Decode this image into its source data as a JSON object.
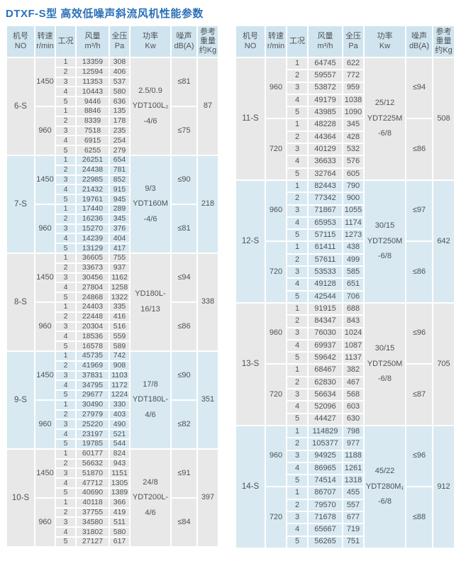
{
  "title": "DTXF-S型 高效低噪声斜流风机性能参数",
  "colors": {
    "title_blue": "#2a70b8",
    "header_bg": "#cfe4ee",
    "row_gray": "#e8e8e8",
    "row_blue": "#d8e9f1",
    "text": "#4f5254"
  },
  "header": {
    "columns": [
      {
        "id": "no",
        "lines": [
          "机号",
          "NO"
        ]
      },
      {
        "id": "speed",
        "lines": [
          "转速",
          "r/min"
        ]
      },
      {
        "id": "condition",
        "lines": [
          "工况"
        ]
      },
      {
        "id": "flow",
        "lines": [
          "风量",
          "m³/h"
        ]
      },
      {
        "id": "pressure",
        "lines": [
          "全压",
          "Pa"
        ]
      },
      {
        "id": "power",
        "lines": [
          "功率",
          "Kw"
        ]
      },
      {
        "id": "noise",
        "lines": [
          "噪声",
          "dB(A)"
        ]
      },
      {
        "id": "weight",
        "lines": [
          "参考",
          "重量",
          "约Kg"
        ]
      }
    ]
  },
  "tables": [
    {
      "id": "left",
      "blocks": [
        {
          "model": "6-S",
          "weight": "87",
          "power_lines": [
            "2.5/0.9",
            "YDT100L₂",
            "-4/6"
          ],
          "groups": [
            {
              "speed": "1450",
              "noise": "≤81",
              "rows": [
                [
                  "1",
                  "13359",
                  "308"
                ],
                [
                  "2",
                  "12594",
                  "406"
                ],
                [
                  "3",
                  "11353",
                  "537"
                ],
                [
                  "4",
                  "10443",
                  "580"
                ],
                [
                  "5",
                  "9446",
                  "636"
                ]
              ]
            },
            {
              "speed": "960",
              "noise": "≤75",
              "rows": [
                [
                  "1",
                  "8846",
                  "135"
                ],
                [
                  "2",
                  "8339",
                  "178"
                ],
                [
                  "3",
                  "7518",
                  "235"
                ],
                [
                  "4",
                  "6915",
                  "254"
                ],
                [
                  "5",
                  "6255",
                  "279"
                ]
              ]
            }
          ]
        },
        {
          "model": "7-S",
          "weight": "218",
          "power_lines": [
            "9/3",
            "YDT160M",
            "-4/6"
          ],
          "groups": [
            {
              "speed": "1450",
              "noise": "≤90",
              "rows": [
                [
                  "1",
                  "26251",
                  "654"
                ],
                [
                  "2",
                  "24438",
                  "781"
                ],
                [
                  "3",
                  "22985",
                  "852"
                ],
                [
                  "4",
                  "21432",
                  "915"
                ],
                [
                  "5",
                  "19761",
                  "945"
                ]
              ]
            },
            {
              "speed": "960",
              "noise": "≤81",
              "rows": [
                [
                  "1",
                  "17440",
                  "289"
                ],
                [
                  "2",
                  "16236",
                  "345"
                ],
                [
                  "3",
                  "15270",
                  "376"
                ],
                [
                  "4",
                  "14239",
                  "404"
                ],
                [
                  "5",
                  "13129",
                  "417"
                ]
              ]
            }
          ]
        },
        {
          "model": "8-S",
          "weight": "338",
          "power_lines": [
            "YD180L-",
            "16/13"
          ],
          "groups": [
            {
              "speed": "1450",
              "noise": "≤94",
              "rows": [
                [
                  "1",
                  "36605",
                  "755"
                ],
                [
                  "2",
                  "33673",
                  "937"
                ],
                [
                  "3",
                  "30456",
                  "1162"
                ],
                [
                  "4",
                  "27804",
                  "1258"
                ],
                [
                  "5",
                  "24868",
                  "1322"
                ]
              ]
            },
            {
              "speed": "960",
              "noise": "≤86",
              "rows": [
                [
                  "1",
                  "24403",
                  "335"
                ],
                [
                  "2",
                  "22448",
                  "416"
                ],
                [
                  "3",
                  "20304",
                  "516"
                ],
                [
                  "4",
                  "18536",
                  "559"
                ],
                [
                  "5",
                  "16578",
                  "589"
                ]
              ]
            }
          ]
        },
        {
          "model": "9-S",
          "weight": "351",
          "power_lines": [
            "17/8",
            "YDT180L-",
            "4/6"
          ],
          "groups": [
            {
              "speed": "1450",
              "noise": "≤90",
              "rows": [
                [
                  "1",
                  "45735",
                  "742"
                ],
                [
                  "2",
                  "41969",
                  "908"
                ],
                [
                  "3",
                  "37831",
                  "1103"
                ],
                [
                  "4",
                  "34795",
                  "1172"
                ],
                [
                  "5",
                  "29677",
                  "1224"
                ]
              ]
            },
            {
              "speed": "960",
              "noise": "≤82",
              "rows": [
                [
                  "1",
                  "30490",
                  "330"
                ],
                [
                  "2",
                  "27979",
                  "403"
                ],
                [
                  "3",
                  "25220",
                  "490"
                ],
                [
                  "4",
                  "23197",
                  "521"
                ],
                [
                  "5",
                  "19785",
                  "544"
                ]
              ]
            }
          ]
        },
        {
          "model": "10-S",
          "weight": "397",
          "power_lines": [
            "24/8",
            "YDT200L-",
            "4/6"
          ],
          "groups": [
            {
              "speed": "1450",
              "noise": "≤91",
              "rows": [
                [
                  "1",
                  "60177",
                  "824"
                ],
                [
                  "2",
                  "56632",
                  "943"
                ],
                [
                  "3",
                  "51870",
                  "1151"
                ],
                [
                  "4",
                  "47712",
                  "1305"
                ],
                [
                  "5",
                  "40690",
                  "1389"
                ]
              ]
            },
            {
              "speed": "960",
              "noise": "≤84",
              "rows": [
                [
                  "1",
                  "40118",
                  "366"
                ],
                [
                  "2",
                  "37755",
                  "419"
                ],
                [
                  "3",
                  "34580",
                  "511"
                ],
                [
                  "4",
                  "31802",
                  "580"
                ],
                [
                  "5",
                  "27127",
                  "617"
                ]
              ]
            }
          ]
        }
      ]
    },
    {
      "id": "right",
      "blocks": [
        {
          "model": "11-S",
          "weight": "508",
          "power_lines": [
            "25/12",
            "YDT225M",
            "-6/8"
          ],
          "groups": [
            {
              "speed": "960",
              "noise": "≤94",
              "rows": [
                [
                  "1",
                  "64745",
                  "622"
                ],
                [
                  "2",
                  "59557",
                  "772"
                ],
                [
                  "3",
                  "53872",
                  "959"
                ],
                [
                  "4",
                  "49179",
                  "1038"
                ],
                [
                  "5",
                  "43985",
                  "1090"
                ]
              ]
            },
            {
              "speed": "720",
              "noise": "≤86",
              "rows": [
                [
                  "1",
                  "48228",
                  "345"
                ],
                [
                  "2",
                  "44364",
                  "428"
                ],
                [
                  "3",
                  "40129",
                  "532"
                ],
                [
                  "4",
                  "36633",
                  "576"
                ],
                [
                  "5",
                  "32764",
                  "605"
                ]
              ]
            }
          ]
        },
        {
          "model": "12-S",
          "weight": "642",
          "power_lines": [
            "30/15",
            "YDT250M",
            "-6/8"
          ],
          "groups": [
            {
              "speed": "960",
              "noise": "≤97",
              "rows": [
                [
                  "1",
                  "82443",
                  "790"
                ],
                [
                  "2",
                  "77342",
                  "900"
                ],
                [
                  "3",
                  "71867",
                  "1055"
                ],
                [
                  "4",
                  "65953",
                  "1174"
                ],
                [
                  "5",
                  "57115",
                  "1273"
                ]
              ]
            },
            {
              "speed": "720",
              "noise": "≤86",
              "rows": [
                [
                  "1",
                  "61411",
                  "438"
                ],
                [
                  "2",
                  "57611",
                  "499"
                ],
                [
                  "3",
                  "53533",
                  "585"
                ],
                [
                  "4",
                  "49128",
                  "651"
                ],
                [
                  "5",
                  "42544",
                  "706"
                ]
              ]
            }
          ]
        },
        {
          "model": "13-S",
          "weight": "705",
          "power_lines": [
            "30/15",
            "YDT250M",
            "-6/8"
          ],
          "groups": [
            {
              "speed": "960",
              "noise": "≤96",
              "rows": [
                [
                  "1",
                  "91915",
                  "688"
                ],
                [
                  "2",
                  "84347",
                  "843"
                ],
                [
                  "3",
                  "76030",
                  "1024"
                ],
                [
                  "4",
                  "69937",
                  "1087"
                ],
                [
                  "5",
                  "59642",
                  "1137"
                ]
              ]
            },
            {
              "speed": "720",
              "noise": "≤87",
              "rows": [
                [
                  "1",
                  "68467",
                  "382"
                ],
                [
                  "2",
                  "62830",
                  "467"
                ],
                [
                  "3",
                  "56634",
                  "568"
                ],
                [
                  "4",
                  "52096",
                  "603"
                ],
                [
                  "5",
                  "44427",
                  "630"
                ]
              ]
            }
          ]
        },
        {
          "model": "14-S",
          "weight": "912",
          "power_lines": [
            "45/22",
            "YDT280M₁",
            "-6/8"
          ],
          "groups": [
            {
              "speed": "960",
              "noise": "≤96",
              "rows": [
                [
                  "1",
                  "114829",
                  "798"
                ],
                [
                  "2",
                  "105377",
                  "977"
                ],
                [
                  "3",
                  "94925",
                  "1188"
                ],
                [
                  "4",
                  "86965",
                  "1261"
                ],
                [
                  "5",
                  "74514",
                  "1318"
                ]
              ]
            },
            {
              "speed": "720",
              "noise": "≤88",
              "rows": [
                [
                  "1",
                  "86707",
                  "455"
                ],
                [
                  "2",
                  "79570",
                  "557"
                ],
                [
                  "3",
                  "71678",
                  "677"
                ],
                [
                  "4",
                  "65667",
                  "719"
                ],
                [
                  "5",
                  "56265",
                  "751"
                ]
              ]
            }
          ]
        }
      ]
    }
  ]
}
